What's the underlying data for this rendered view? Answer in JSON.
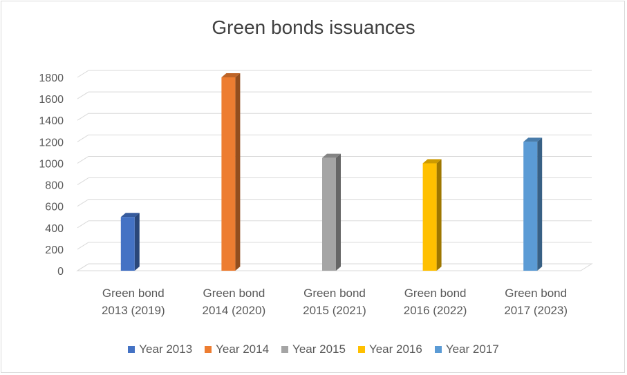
{
  "chart_data": {
    "type": "bar",
    "title": "Green bonds issuances",
    "categories": [
      [
        "Green bond",
        "2013 (2019)"
      ],
      [
        "Green bond",
        "2014 (2020)"
      ],
      [
        "Green bond",
        "2015 (2021)"
      ],
      [
        "Green bond",
        "2016 (2022)"
      ],
      [
        "Green bond",
        "2017 (2023)"
      ]
    ],
    "series": [
      {
        "name": "Year 2013",
        "color": "#4472c4",
        "values": [
          500,
          null,
          null,
          null,
          null
        ]
      },
      {
        "name": "Year 2014",
        "color": "#ed7d31",
        "values": [
          null,
          1800,
          null,
          null,
          null
        ]
      },
      {
        "name": "Year 2015",
        "color": "#a5a5a5",
        "values": [
          null,
          null,
          1050,
          null,
          null
        ]
      },
      {
        "name": "Year 2016",
        "color": "#ffc000",
        "values": [
          null,
          null,
          null,
          1000,
          null
        ]
      },
      {
        "name": "Year 2017",
        "color": "#5b9bd5",
        "values": [
          null,
          null,
          null,
          null,
          1200
        ]
      }
    ],
    "yticks": [
      "0",
      "200",
      "400",
      "600",
      "800",
      "1000",
      "1200",
      "1400",
      "1600",
      "1800"
    ],
    "ylim": [
      0,
      1800
    ],
    "grid": true,
    "legend_position": "bottom",
    "style": "3d-column"
  }
}
